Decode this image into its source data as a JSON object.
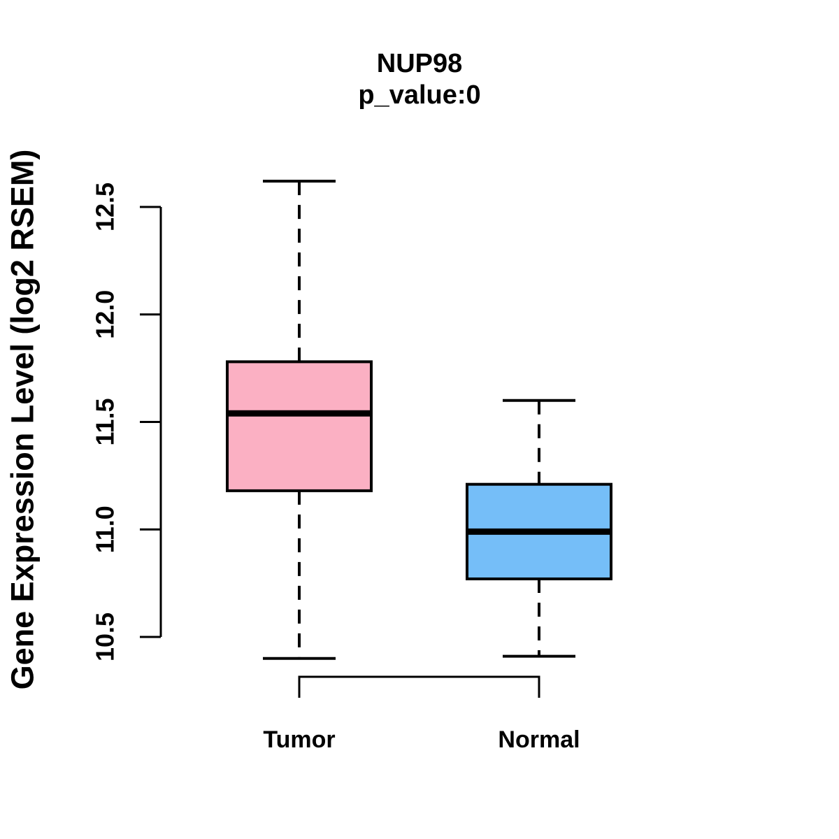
{
  "chart_data": {
    "type": "boxplot",
    "title": "NUP98",
    "subtitle": "p_value:0",
    "ylabel": "Gene Expression Level (log2 RSEM)",
    "xlabel": "",
    "categories": [
      "Tumor",
      "Normal"
    ],
    "ylim": [
      10.5,
      12.5
    ],
    "yticks": [
      12.5,
      12.0,
      11.5,
      11.0,
      10.5
    ],
    "ytick_labels": [
      "12.5",
      "12.0",
      "11.5",
      "11.0",
      "10.5"
    ],
    "grid": false,
    "legend": "none",
    "series": [
      {
        "name": "Tumor",
        "color": "#FBB0C3",
        "whisker_low": 10.4,
        "q1": 11.18,
        "median": 11.54,
        "q3": 11.78,
        "whisker_high": 12.62
      },
      {
        "name": "Normal",
        "color": "#75BEF8",
        "whisker_low": 10.41,
        "q1": 10.77,
        "median": 10.99,
        "q3": 11.21,
        "whisker_high": 11.6
      }
    ]
  },
  "colors": {
    "stroke": "#000000",
    "background": "#FFFFFF",
    "tumor_fill": "#FBB0C3",
    "normal_fill": "#75BEF8"
  }
}
